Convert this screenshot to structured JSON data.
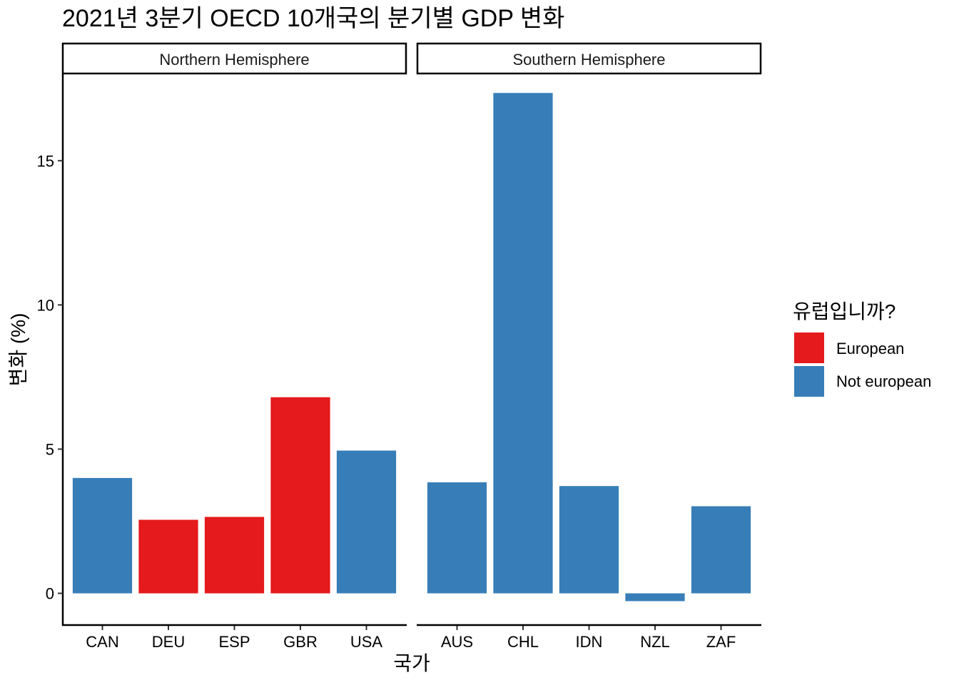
{
  "chart_data": {
    "type": "bar",
    "title": "2021년 3분기 OECD 10개국의 분기별 GDP 변화",
    "xlabel": "국가",
    "ylabel": "변화 (%)",
    "ylim": [
      -1.1,
      18
    ],
    "yticks": [
      0,
      5,
      10,
      15
    ],
    "legend": {
      "title": "유럽입니까?",
      "position": "right",
      "entries": [
        {
          "label": "European",
          "color": "#E41A1C"
        },
        {
          "label": "Not european",
          "color": "#377EB8"
        }
      ]
    },
    "facets": [
      {
        "label": "Northern Hemisphere",
        "categories": [
          "CAN",
          "DEU",
          "ESP",
          "GBR",
          "USA"
        ],
        "values": [
          4.0,
          2.55,
          2.65,
          6.8,
          4.95
        ],
        "group": [
          "Not european",
          "European",
          "European",
          "European",
          "Not european"
        ]
      },
      {
        "label": "Southern Hemisphere",
        "categories": [
          "AUS",
          "CHL",
          "IDN",
          "NZL",
          "ZAF"
        ],
        "values": [
          3.85,
          17.35,
          3.72,
          -0.27,
          3.02
        ],
        "group": [
          "Not european",
          "Not european",
          "Not european",
          "Not european",
          "Not european"
        ]
      }
    ]
  }
}
